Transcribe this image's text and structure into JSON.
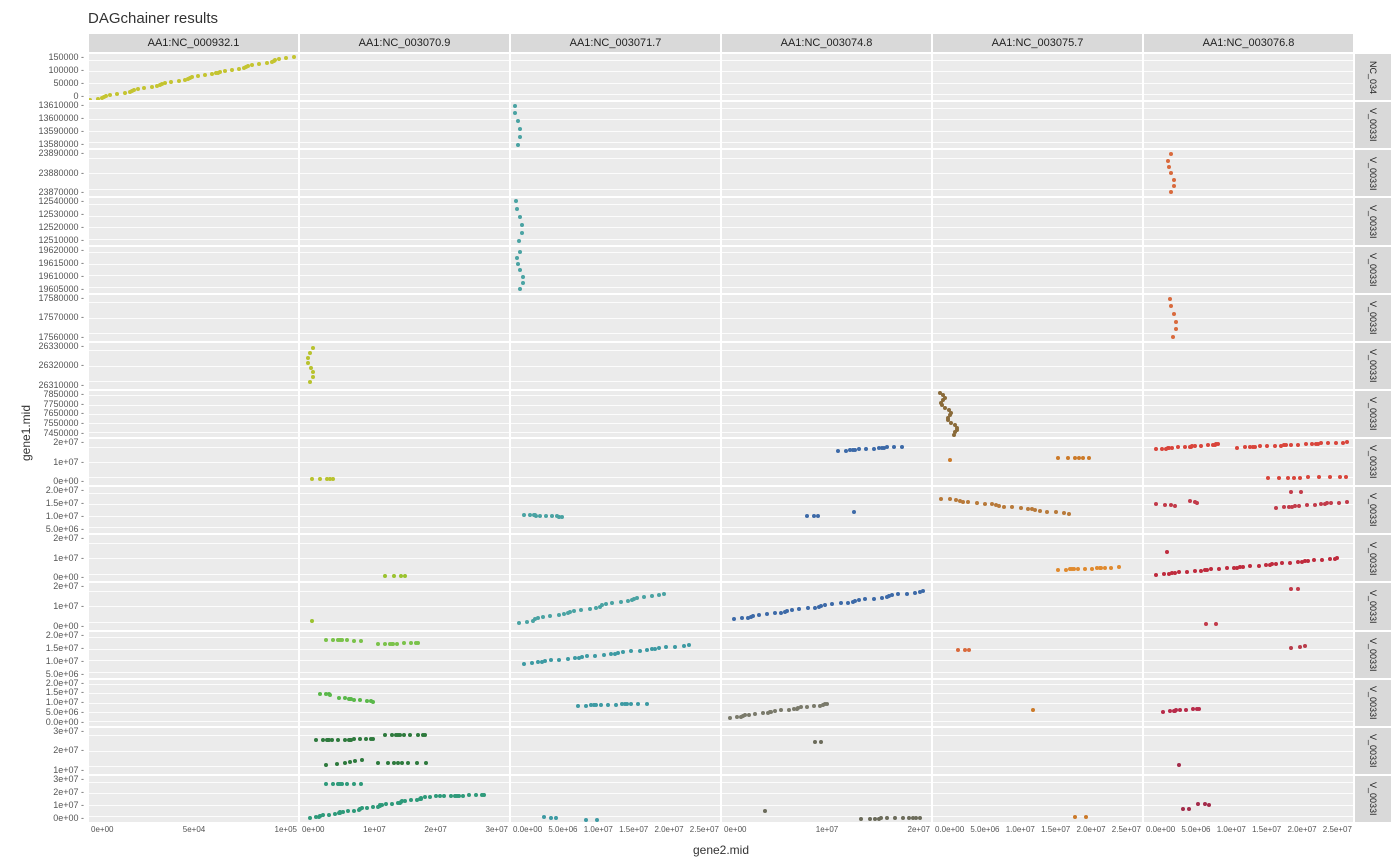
{
  "title": "DAGchainer results",
  "xlabel": "gene2.mid",
  "ylabel": "gene1.mid",
  "background_color": "#ffffff",
  "panel_background": "#ebebeb",
  "strip_background": "#d9d9d9",
  "grid_color": "#ffffff",
  "tick_color": "#555555",
  "title_fontsize": 15,
  "label_fontsize": 12,
  "tick_fontsize": 9,
  "strip_fontsize": 11,
  "point_size": 4,
  "columns": [
    {
      "label": "AA1:NC_000932.1",
      "xticks": [
        "0e+00",
        "5e+04",
        "1e+05"
      ],
      "xlim": [
        0,
        160000
      ]
    },
    {
      "label": "AA1:NC_003070.9",
      "xticks": [
        "0e+00",
        "1e+07",
        "2e+07",
        "3e+07"
      ],
      "xlim": [
        0,
        32000000
      ]
    },
    {
      "label": "AA1:NC_003071.7",
      "xticks": [
        "0.0e+00",
        "5.0e+06",
        "1.0e+07",
        "1.5e+07",
        "2.0e+07",
        "2.5e+07"
      ],
      "xlim": [
        0,
        25000000
      ]
    },
    {
      "label": "AA1:NC_003074.8",
      "xticks": [
        "0e+00",
        "1e+07",
        "2e+07"
      ],
      "xlim": [
        0,
        27000000
      ]
    },
    {
      "label": "AA1:NC_003075.7",
      "xticks": [
        "0.0e+00",
        "5.0e+06",
        "1.0e+07",
        "1.5e+07",
        "2.0e+07",
        "2.5e+07"
      ],
      "xlim": [
        0,
        25000000
      ]
    },
    {
      "label": "AA1:NC_003076.8",
      "xticks": [
        "0.0e+00",
        "5.0e+06",
        "1.0e+07",
        "1.5e+07",
        "2.0e+07",
        "2.5e+07"
      ],
      "xlim": [
        0,
        27000000
      ]
    }
  ],
  "rows": [
    {
      "label": "NC_034",
      "yticks": [
        "0",
        "50000",
        "100000",
        "150000"
      ],
      "ylim": [
        0,
        160000
      ]
    },
    {
      "label": "V_0033I",
      "yticks": [
        "13580000",
        "13590000",
        "13600000",
        "13610000"
      ],
      "ylim": [
        13575000,
        13615000
      ]
    },
    {
      "label": "V_0033I",
      "yticks": [
        "23870000",
        "23880000",
        "23890000"
      ],
      "ylim": [
        23865000,
        23900000
      ]
    },
    {
      "label": "V_0033I",
      "yticks": [
        "12510000",
        "12520000",
        "12530000",
        "12540000"
      ],
      "ylim": [
        12505000,
        12545000
      ]
    },
    {
      "label": "V_0033I",
      "yticks": [
        "19605000",
        "19610000",
        "19615000",
        "19620000"
      ],
      "ylim": [
        19600000,
        19625000
      ]
    },
    {
      "label": "V_0033I",
      "yticks": [
        "17560000",
        "17570000",
        "17580000"
      ],
      "ylim": [
        17555000,
        17590000
      ]
    },
    {
      "label": "V_0033I",
      "yticks": [
        "26310000",
        "26320000",
        "26330000"
      ],
      "ylim": [
        26305000,
        26340000
      ]
    },
    {
      "label": "V_0033I",
      "yticks": [
        "7450000",
        "7550000",
        "7650000",
        "7750000",
        "7850000"
      ],
      "ylim": [
        7430000,
        7870000
      ]
    },
    {
      "label": "V_0033I",
      "yticks": [
        "0e+00",
        "1e+07",
        "2e+07"
      ],
      "ylim": [
        -2000000,
        25000000
      ]
    },
    {
      "label": "V_0033I",
      "yticks": [
        "5.0e+06",
        "1.0e+07",
        "1.5e+07",
        "2.0e+07"
      ],
      "ylim": [
        2000000,
        22000000
      ]
    },
    {
      "label": "V_0033I",
      "yticks": [
        "0e+00",
        "1e+07",
        "2e+07"
      ],
      "ylim": [
        -3000000,
        25000000
      ]
    },
    {
      "label": "V_0033I",
      "yticks": [
        "0e+00",
        "1e+07",
        "2e+07"
      ],
      "ylim": [
        -2000000,
        25000000
      ]
    },
    {
      "label": "V_0033I",
      "yticks": [
        "5.0e+06",
        "1.0e+07",
        "1.5e+07",
        "2.0e+07"
      ],
      "ylim": [
        2000000,
        22000000
      ]
    },
    {
      "label": "V_0033I",
      "yticks": [
        "0.0e+00",
        "5.0e+06",
        "1.0e+07",
        "1.5e+07",
        "2.0e+07"
      ],
      "ylim": [
        -1000000,
        22000000
      ]
    },
    {
      "label": "V_0033I",
      "yticks": [
        "1e+07",
        "2e+07",
        "3e+07"
      ],
      "ylim": [
        3000000,
        33000000
      ]
    },
    {
      "label": "V_0033I",
      "yticks": [
        "0e+00",
        "1e+07",
        "2e+07",
        "3e+07"
      ],
      "ylim": [
        -2000000,
        33000000
      ]
    }
  ],
  "series": [
    {
      "row": 0,
      "col": 0,
      "color": "#c4c431",
      "segments": [
        {
          "x": [
            1000,
            155000
          ],
          "y": [
            1000,
            150000
          ],
          "n": 45
        }
      ]
    },
    {
      "row": 1,
      "col": 2,
      "color": "#4aa3a3",
      "segments": [
        {
          "x": [
            800000,
            800000
          ],
          "y": [
            13578000,
            13612000
          ],
          "n": 6
        }
      ]
    },
    {
      "row": 2,
      "col": 5,
      "color": "#d96a3d",
      "segments": [
        {
          "x": [
            3500000,
            3500000
          ],
          "y": [
            23868000,
            23897000
          ],
          "n": 7
        }
      ]
    },
    {
      "row": 3,
      "col": 2,
      "color": "#4aa3a3",
      "segments": [
        {
          "x": [
            1000000,
            1000000
          ],
          "y": [
            12508000,
            12543000
          ],
          "n": 6
        }
      ]
    },
    {
      "row": 4,
      "col": 2,
      "color": "#4aa3a3",
      "segments": [
        {
          "x": [
            1100000,
            1100000
          ],
          "y": [
            19602000,
            19622000
          ],
          "n": 7
        }
      ]
    },
    {
      "row": 5,
      "col": 5,
      "color": "#d96a3d",
      "segments": [
        {
          "x": [
            3800000,
            3800000
          ],
          "y": [
            17558000,
            17587000
          ],
          "n": 6
        }
      ]
    },
    {
      "row": 6,
      "col": 1,
      "color": "#b8c22e",
      "segments": [
        {
          "x": [
            1600000,
            1600000
          ],
          "y": [
            26310000,
            26336000
          ],
          "n": 8
        }
      ]
    },
    {
      "row": 7,
      "col": 4,
      "color": "#8a6b3a",
      "segments": [
        {
          "x": [
            800000,
            2900000
          ],
          "y": [
            7850000,
            7450000
          ],
          "n": 18
        }
      ]
    },
    {
      "row": 8,
      "col": 1,
      "color": "#b8c22e",
      "segments": [
        {
          "x": [
            1800000,
            5500000
          ],
          "y": [
            1500000,
            1500000
          ],
          "n": 5
        }
      ]
    },
    {
      "row": 8,
      "col": 3,
      "color": "#3d6aa8",
      "segments": [
        {
          "x": [
            15000000,
            23000000
          ],
          "y": [
            18000000,
            20500000
          ],
          "n": 14
        }
      ]
    },
    {
      "row": 8,
      "col": 4,
      "color": "#cc7a29",
      "segments": [
        {
          "x": [
            2000000,
            2000000
          ],
          "y": [
            13000000,
            13000000
          ],
          "n": 1
        },
        {
          "x": [
            15000000,
            19000000
          ],
          "y": [
            14000000,
            14000000
          ],
          "n": 6
        }
      ]
    },
    {
      "row": 8,
      "col": 5,
      "color": "#d9453b",
      "segments": [
        {
          "x": [
            1500000,
            10000000
          ],
          "y": [
            19000000,
            22000000
          ],
          "n": 18
        },
        {
          "x": [
            12000000,
            26000000
          ],
          "y": [
            20000000,
            23000000
          ],
          "n": 22
        },
        {
          "x": [
            16000000,
            26000000
          ],
          "y": [
            2000000,
            3000000
          ],
          "n": 10
        }
      ]
    },
    {
      "row": 9,
      "col": 2,
      "color": "#4aa3a3",
      "segments": [
        {
          "x": [
            1500000,
            6500000
          ],
          "y": [
            10000000,
            9000000
          ],
          "n": 12
        }
      ]
    },
    {
      "row": 9,
      "col": 3,
      "color": "#3d6aa8",
      "segments": [
        {
          "x": [
            11000000,
            12000000
          ],
          "y": [
            9500000,
            9500000
          ],
          "n": 3
        },
        {
          "x": [
            17000000,
            17000000
          ],
          "y": [
            11000000,
            11000000
          ],
          "n": 1
        }
      ]
    },
    {
      "row": 9,
      "col": 4,
      "color": "#b87a3a",
      "segments": [
        {
          "x": [
            1000000,
            16000000
          ],
          "y": [
            17000000,
            10500000
          ],
          "n": 22
        }
      ]
    },
    {
      "row": 9,
      "col": 5,
      "color": "#c23b4a",
      "segments": [
        {
          "x": [
            1500000,
            4000000
          ],
          "y": [
            14500000,
            14000000
          ],
          "n": 4
        },
        {
          "x": [
            6000000,
            6500000
          ],
          "y": [
            16000000,
            15000000
          ],
          "n": 3
        },
        {
          "x": [
            17000000,
            26000000
          ],
          "y": [
            13000000,
            15500000
          ],
          "n": 14
        },
        {
          "x": [
            19000000,
            20000000
          ],
          "y": [
            20000000,
            20000000
          ],
          "n": 2
        }
      ]
    },
    {
      "row": 10,
      "col": 1,
      "color": "#9ac22e",
      "segments": [
        {
          "x": [
            13000000,
            16000000
          ],
          "y": [
            500000,
            500000
          ],
          "n": 4
        }
      ]
    },
    {
      "row": 10,
      "col": 4,
      "color": "#e08a2e",
      "segments": [
        {
          "x": [
            15000000,
            22000000
          ],
          "y": [
            4000000,
            5500000
          ],
          "n": 14
        }
      ]
    },
    {
      "row": 10,
      "col": 5,
      "color": "#bf2b3d",
      "segments": [
        {
          "x": [
            1500000,
            25000000
          ],
          "y": [
            1000000,
            11000000
          ],
          "n": 35
        },
        {
          "x": [
            3000000,
            3000000
          ],
          "y": [
            15000000,
            15000000
          ],
          "n": 1
        }
      ]
    },
    {
      "row": 11,
      "col": 1,
      "color": "#9ac22e",
      "segments": [
        {
          "x": [
            1800000,
            1800000
          ],
          "y": [
            3000000,
            3000000
          ],
          "n": 1
        }
      ]
    },
    {
      "row": 11,
      "col": 2,
      "color": "#4aa3a3",
      "segments": [
        {
          "x": [
            1000000,
            18000000
          ],
          "y": [
            2000000,
            19000000
          ],
          "n": 28
        }
      ]
    },
    {
      "row": 11,
      "col": 3,
      "color": "#3d6aa8",
      "segments": [
        {
          "x": [
            1500000,
            26000000
          ],
          "y": [
            4000000,
            20500000
          ],
          "n": 35
        }
      ]
    },
    {
      "row": 11,
      "col": 5,
      "color": "#c23b4a",
      "segments": [
        {
          "x": [
            8000000,
            9000000
          ],
          "y": [
            1000000,
            1000000
          ],
          "n": 2
        },
        {
          "x": [
            19000000,
            19500000
          ],
          "y": [
            22000000,
            22000000
          ],
          "n": 2
        }
      ]
    },
    {
      "row": 12,
      "col": 1,
      "color": "#7ac24a",
      "segments": [
        {
          "x": [
            4000000,
            9000000
          ],
          "y": [
            18500000,
            18000000
          ],
          "n": 8
        },
        {
          "x": [
            12000000,
            18000000
          ],
          "y": [
            16500000,
            17000000
          ],
          "n": 10
        }
      ]
    },
    {
      "row": 12,
      "col": 2,
      "color": "#3d9aa3",
      "segments": [
        {
          "x": [
            1500000,
            21000000
          ],
          "y": [
            8000000,
            16000000
          ],
          "n": 28
        }
      ]
    },
    {
      "row": 12,
      "col": 4,
      "color": "#d96a3d",
      "segments": [
        {
          "x": [
            3000000,
            4000000
          ],
          "y": [
            14000000,
            14000000
          ],
          "n": 3
        }
      ]
    },
    {
      "row": 12,
      "col": 5,
      "color": "#b83b4a",
      "segments": [
        {
          "x": [
            19000000,
            20500000
          ],
          "y": [
            15000000,
            15500000
          ],
          "n": 3
        }
      ]
    },
    {
      "row": 13,
      "col": 1,
      "color": "#5ab84a",
      "segments": [
        {
          "x": [
            3000000,
            4500000
          ],
          "y": [
            15000000,
            14500000
          ],
          "n": 4
        },
        {
          "x": [
            6000000,
            11000000
          ],
          "y": [
            13000000,
            11000000
          ],
          "n": 10
        }
      ]
    },
    {
      "row": 13,
      "col": 2,
      "color": "#3d9aa3",
      "segments": [
        {
          "x": [
            8000000,
            16000000
          ],
          "y": [
            9000000,
            10000000
          ],
          "n": 14
        }
      ]
    },
    {
      "row": 13,
      "col": 3,
      "color": "#7a7a6b",
      "segments": [
        {
          "x": [
            1000000,
            14000000
          ],
          "y": [
            3000000,
            10000000
          ],
          "n": 24
        }
      ]
    },
    {
      "row": 13,
      "col": 4,
      "color": "#cc7a29",
      "segments": [
        {
          "x": [
            12000000,
            12000000
          ],
          "y": [
            7000000,
            7000000
          ],
          "n": 1
        }
      ]
    },
    {
      "row": 13,
      "col": 5,
      "color": "#b82b4a",
      "segments": [
        {
          "x": [
            2500000,
            7000000
          ],
          "y": [
            6000000,
            7500000
          ],
          "n": 10
        }
      ]
    },
    {
      "row": 14,
      "col": 1,
      "color": "#2e7a3d",
      "segments": [
        {
          "x": [
            2500000,
            11000000
          ],
          "y": [
            25000000,
            25500000
          ],
          "n": 16
        },
        {
          "x": [
            13000000,
            19000000
          ],
          "y": [
            28000000,
            28000000
          ],
          "n": 10
        },
        {
          "x": [
            4000000,
            10000000
          ],
          "y": [
            9000000,
            12000000
          ],
          "n": 6
        },
        {
          "x": [
            12000000,
            19000000
          ],
          "y": [
            10000000,
            10000000
          ],
          "n": 8
        }
      ]
    },
    {
      "row": 14,
      "col": 3,
      "color": "#6b6b5a",
      "segments": [
        {
          "x": [
            12000000,
            12500000
          ],
          "y": [
            24000000,
            24000000
          ],
          "n": 2
        }
      ]
    },
    {
      "row": 14,
      "col": 5,
      "color": "#a32b4a",
      "segments": [
        {
          "x": [
            4500000,
            4500000
          ],
          "y": [
            9000000,
            9000000
          ],
          "n": 1
        }
      ]
    },
    {
      "row": 15,
      "col": 1,
      "color": "#2e9a7a",
      "segments": [
        {
          "x": [
            1500000,
            21000000
          ],
          "y": [
            1000000,
            18000000
          ],
          "n": 40
        },
        {
          "x": [
            4000000,
            9000000
          ],
          "y": [
            27000000,
            27000000
          ],
          "n": 8
        },
        {
          "x": [
            22000000,
            28000000
          ],
          "y": [
            17500000,
            18500000
          ],
          "n": 10
        }
      ]
    },
    {
      "row": 15,
      "col": 2,
      "color": "#3d9aa3",
      "segments": [
        {
          "x": [
            4000000,
            5000000
          ],
          "y": [
            1500000,
            1000000
          ],
          "n": 3
        },
        {
          "x": [
            9000000,
            10000000
          ],
          "y": [
            -500000,
            -500000
          ],
          "n": 2
        }
      ]
    },
    {
      "row": 15,
      "col": 3,
      "color": "#6b6b5a",
      "segments": [
        {
          "x": [
            5500000,
            5500000
          ],
          "y": [
            6000000,
            6000000
          ],
          "n": 1
        },
        {
          "x": [
            18000000,
            26000000
          ],
          "y": [
            500000,
            1000000
          ],
          "n": 12
        }
      ]
    },
    {
      "row": 15,
      "col": 4,
      "color": "#cc7a29",
      "segments": [
        {
          "x": [
            17000000,
            18000000
          ],
          "y": [
            1500000,
            1500000
          ],
          "n": 2
        }
      ]
    },
    {
      "row": 15,
      "col": 5,
      "color": "#a32b4a",
      "segments": [
        {
          "x": [
            7000000,
            8000000
          ],
          "y": [
            12000000,
            11000000
          ],
          "n": 3
        },
        {
          "x": [
            5000000,
            5500000
          ],
          "y": [
            8000000,
            8000000
          ],
          "n": 2
        }
      ]
    }
  ]
}
